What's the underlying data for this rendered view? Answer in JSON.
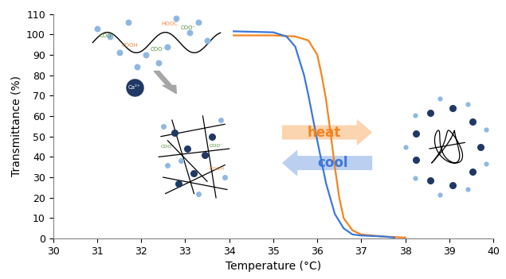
{
  "chart_data": {
    "type": "line",
    "x_label": "Temperature (°C)",
    "y_label": "Transmittance (%)",
    "xlim": [
      30,
      40
    ],
    "xticks": [
      30,
      31,
      32,
      33,
      34,
      35,
      36,
      37,
      38,
      39,
      40
    ],
    "ylim": [
      0,
      110
    ],
    "yticks": [
      0,
      10,
      20,
      30,
      40,
      50,
      60,
      70,
      80,
      90,
      100,
      110
    ],
    "grid": false,
    "series": [
      {
        "name": "heat",
        "color": "#f5841f",
        "x": [
          34.1,
          35.0,
          35.5,
          35.8,
          36.0,
          36.1,
          36.2,
          36.3,
          36.4,
          36.5,
          36.6,
          36.8,
          37.0,
          37.5,
          38.0
        ],
        "values": [
          99.5,
          99.5,
          99,
          97,
          90,
          80,
          68,
          52,
          35,
          20,
          10,
          4,
          2,
          1,
          0.5
        ]
      },
      {
        "name": "cool",
        "color": "#3c78d8",
        "x": [
          34.1,
          35.0,
          35.3,
          35.5,
          35.7,
          35.8,
          36.0,
          36.2,
          36.4,
          36.6,
          36.8,
          37.0,
          37.5,
          37.75
        ],
        "values": [
          101.5,
          101,
          99,
          94,
          80,
          70,
          48,
          27,
          12,
          5,
          2,
          1.5,
          1,
          0.5
        ]
      }
    ],
    "annotations": {
      "carboxylate": "COO⁻",
      "acid_left": "HOOC",
      "acid": "COOH",
      "ion": "Ca²⁺"
    }
  }
}
